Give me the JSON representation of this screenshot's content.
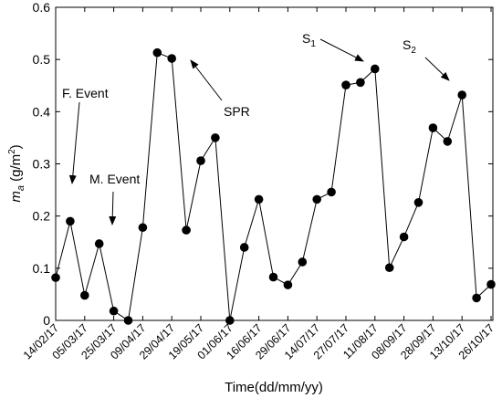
{
  "chart_data": {
    "type": "line",
    "xlabel": "Time(dd/mm/yy)",
    "ylabel": {
      "base": "m",
      "sub": "a",
      "unit_prefix": " (g/m",
      "unit_sup": "2",
      "unit_suffix": ")"
    },
    "ylim": [
      0,
      0.6
    ],
    "yticks": [
      "0",
      "0.1",
      "0.2",
      "0.3",
      "0.4",
      "0.5",
      "0.6"
    ],
    "grid": false,
    "marker_color": "#000000",
    "line_color": "#000000",
    "xticks": [
      {
        "index": 0,
        "label": "14/02/17"
      },
      {
        "index": 2,
        "label": "05/03/17"
      },
      {
        "index": 4,
        "label": "25/03/17"
      },
      {
        "index": 6,
        "label": "09/04/17"
      },
      {
        "index": 8,
        "label": "29/04/17"
      },
      {
        "index": 10,
        "label": "19/05/17"
      },
      {
        "index": 12,
        "label": "01/06/17"
      },
      {
        "index": 14,
        "label": "16/06/17"
      },
      {
        "index": 16,
        "label": "29/06/17"
      },
      {
        "index": 18,
        "label": "14/07/17"
      },
      {
        "index": 20,
        "label": "27/07/17"
      },
      {
        "index": 22,
        "label": "11/08/17"
      },
      {
        "index": 24,
        "label": "08/09/17"
      },
      {
        "index": 26,
        "label": "28/09/17"
      },
      {
        "index": 28,
        "label": "13/10/17"
      },
      {
        "index": 30,
        "label": "26/10/17"
      }
    ],
    "values": [
      0.082,
      0.19,
      0.048,
      0.147,
      0.018,
      0.0,
      0.178,
      0.513,
      0.502,
      0.173,
      0.306,
      0.35,
      0.0,
      0.14,
      0.232,
      0.083,
      0.068,
      0.112,
      0.232,
      0.246,
      0.451,
      0.456,
      0.482,
      0.101,
      0.16,
      0.226,
      0.369,
      0.343,
      0.432,
      0.043,
      0.069
    ],
    "annotations": [
      {
        "name": "f-event",
        "text": "F. Event"
      },
      {
        "name": "m-event",
        "text": "M. Event"
      },
      {
        "name": "spr",
        "text": "SPR"
      },
      {
        "name": "s1",
        "text": "S",
        "sub": "1"
      },
      {
        "name": "s2",
        "text": "S",
        "sub": "2"
      }
    ]
  }
}
